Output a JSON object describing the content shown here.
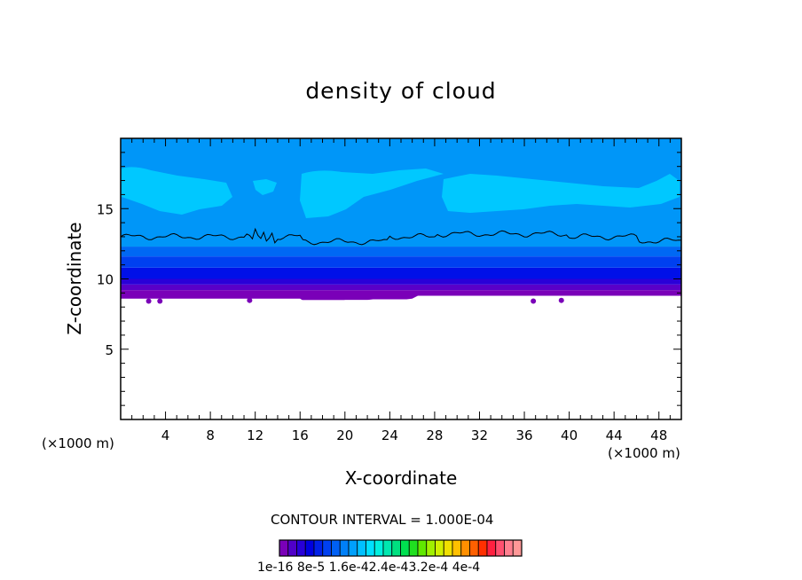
{
  "title": "density of cloud",
  "chart_data": {
    "type": "heatmap",
    "title": "density of cloud",
    "xlabel": "X-coordinate",
    "ylabel": "Z-coordinate",
    "x_unit": "(×1000 m)",
    "xlim": [
      0,
      50
    ],
    "ylim": [
      0,
      20
    ],
    "x_ticks": [
      4,
      8,
      12,
      16,
      20,
      24,
      28,
      32,
      36,
      40,
      44,
      48
    ],
    "y_ticks": [
      5,
      10,
      15
    ],
    "cloud_base_km": 8.6,
    "contour_line_height_km": 13.0,
    "bands": [
      {
        "z0": 8.5,
        "z1": 9.2,
        "color": "#7a00b8"
      },
      {
        "z0": 9.2,
        "z1": 9.6,
        "color": "#5a00c8"
      },
      {
        "z0": 9.6,
        "z1": 10.0,
        "color": "#2a00d8"
      },
      {
        "z0": 10.0,
        "z1": 10.8,
        "color": "#0010e8"
      },
      {
        "z0": 10.8,
        "z1": 11.6,
        "color": "#0040f0"
      },
      {
        "z0": 11.6,
        "z1": 12.3,
        "color": "#0068f4"
      },
      {
        "z0": 12.3,
        "z1": 20.0,
        "color": "#0096f8"
      }
    ],
    "high_region_color": "#00c8ff",
    "grid": false,
    "legend": "bottom"
  },
  "contour_interval": "CONTOUR INTERVAL = 1.000E-04",
  "colorbar": {
    "labels": "1e-16 8e-5 1.6e-42.4e-43.2e-4 4e-4",
    "colors": [
      "#7a00b8",
      "#5000c8",
      "#2800d8",
      "#0000e0",
      "#0020e8",
      "#0040f0",
      "#0060f4",
      "#0080f8",
      "#00a0fc",
      "#00c0ff",
      "#00e0ff",
      "#00f0e0",
      "#00e8b0",
      "#00e080",
      "#00e050",
      "#20e020",
      "#60e800",
      "#a0f000",
      "#d0f000",
      "#f0e000",
      "#ffc000",
      "#ff9000",
      "#ff6000",
      "#ff3000",
      "#ff2040",
      "#ff5070",
      "#ff8090",
      "#ff9898"
    ]
  }
}
